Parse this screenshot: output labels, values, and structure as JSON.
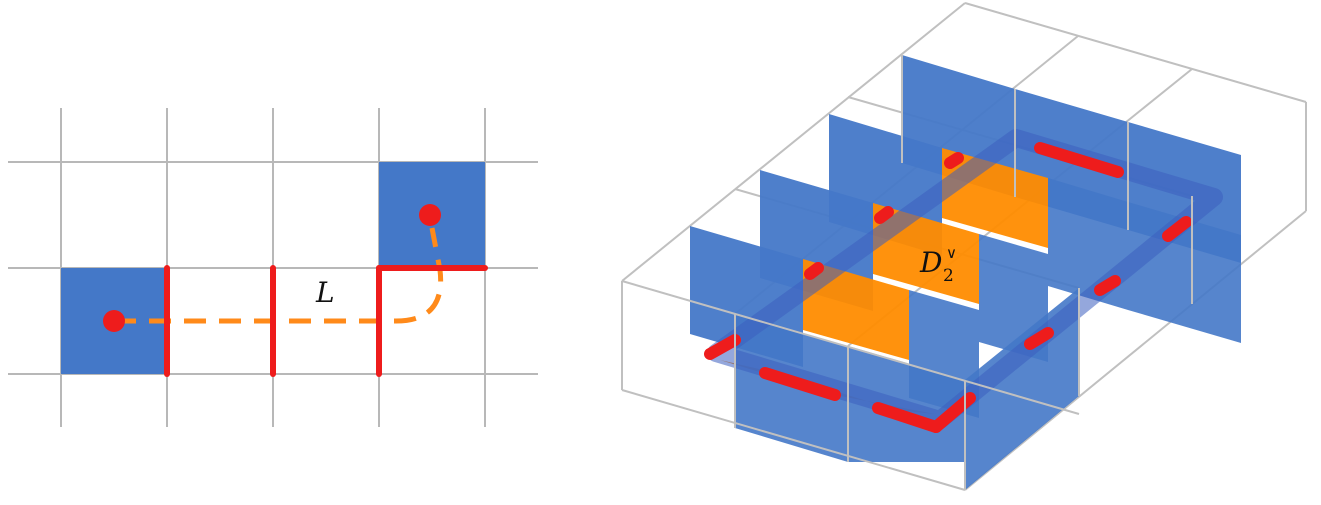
{
  "colors": {
    "grid": "#b8b8b8",
    "blue_face": "#4478c8",
    "red_line": "#ee1c1c",
    "orange_path": "#ff8a1a",
    "orange_face": "#ff8c00",
    "box_edge": "#c0c0c0"
  },
  "left_panel": {
    "label_L": "L"
  },
  "right_panel": {
    "label_D": "D",
    "label_sub": "2",
    "label_sup": "∨"
  }
}
